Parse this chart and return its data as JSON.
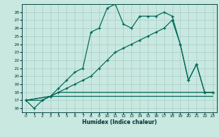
{
  "xlabel": "Humidex (Indice chaleur)",
  "xlim": [
    -0.5,
    23.5
  ],
  "ylim": [
    15.5,
    29.0
  ],
  "yticks": [
    16,
    17,
    18,
    19,
    20,
    21,
    22,
    23,
    24,
    25,
    26,
    27,
    28
  ],
  "xticks": [
    0,
    1,
    2,
    3,
    4,
    5,
    6,
    7,
    8,
    9,
    10,
    11,
    12,
    13,
    14,
    15,
    16,
    17,
    18,
    19,
    20,
    21,
    22,
    23
  ],
  "bg_color": "#c8e8e0",
  "grid_color": "#a8ccc8",
  "line_color": "#006858",
  "line1_x": [
    0,
    1,
    2,
    3,
    4,
    5,
    6,
    7,
    8,
    9,
    10,
    11,
    12,
    13,
    14,
    15,
    16,
    17,
    18,
    19,
    20,
    21,
    22,
    23
  ],
  "line1_y": [
    17.0,
    16.0,
    17.0,
    17.5,
    18.5,
    19.5,
    20.5,
    21.0,
    25.5,
    26.0,
    28.5,
    29.0,
    26.5,
    26.0,
    27.5,
    27.5,
    27.5,
    28.0,
    27.5,
    24.0,
    19.5,
    21.5,
    18.0,
    18.0
  ],
  "line2_x": [
    0,
    2,
    3,
    4,
    5,
    6,
    7,
    8,
    9,
    10,
    11,
    12,
    13,
    14,
    15,
    16,
    17,
    18,
    19,
    20,
    21,
    22,
    23
  ],
  "line2_y": [
    17.0,
    17.0,
    17.5,
    18.0,
    18.5,
    19.0,
    19.5,
    20.0,
    21.0,
    22.0,
    23.0,
    23.5,
    24.0,
    24.5,
    25.0,
    25.5,
    26.0,
    27.0,
    24.0,
    19.5,
    21.5,
    18.0,
    18.0
  ],
  "line3_x": [
    0,
    3,
    23
  ],
  "line3_y": [
    17.0,
    17.5,
    17.5
  ],
  "line4_x": [
    0,
    3,
    4,
    23
  ],
  "line4_y": [
    17.0,
    17.5,
    18.0,
    18.0
  ]
}
